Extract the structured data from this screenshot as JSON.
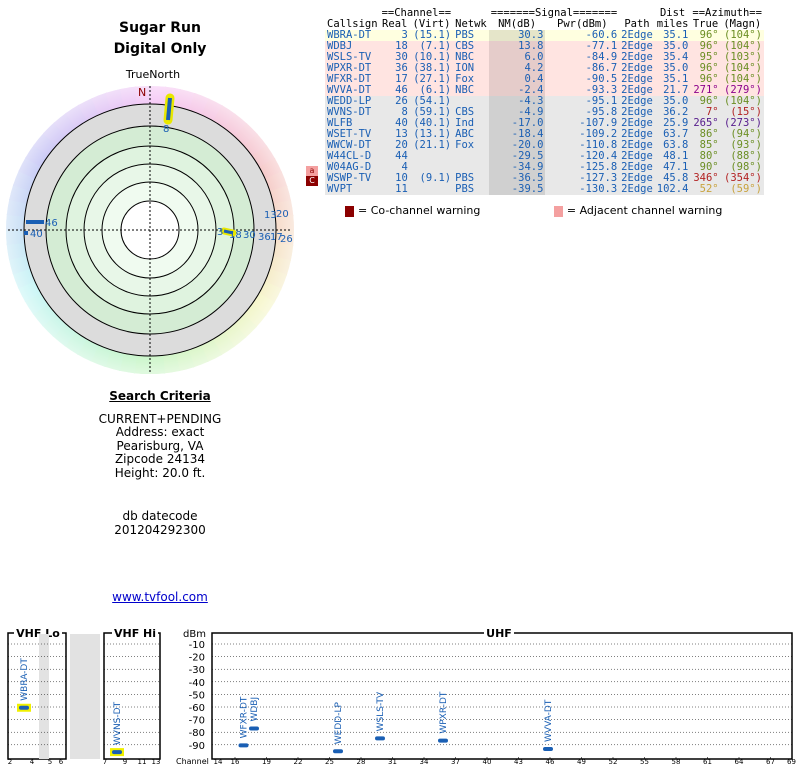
{
  "header": {
    "title_line1": "Sugar Run",
    "title_line2": "Digital Only",
    "true_north": "TrueNorth"
  },
  "table": {
    "group_headers": {
      "channel": "==Channel==",
      "signal": "=======Signal=======",
      "dist": "Dist",
      "azimuth": "==Azimuth=="
    },
    "columns": {
      "callsign": "Callsign",
      "real": "Real",
      "virt": "(Virt)",
      "netwk": "Netwk",
      "nm": "NM(dB)",
      "pwr": "Pwr(dBm)",
      "path": "Path",
      "dist": "miles",
      "true": "True",
      "magn": "(Magn)"
    },
    "rows": [
      {
        "callsign": "WBRA-DT",
        "real": "3",
        "virt": "(15.1)",
        "netwk": "PBS",
        "nm": "30.3",
        "pwr": "-60.6",
        "path": "2Edge",
        "dist": "35.1",
        "true": "96°",
        "magn": "(104°)",
        "bg": "#ffffe0",
        "az_color": "#6b8e23"
      },
      {
        "callsign": "WDBJ",
        "real": "18",
        "virt": "(7.1)",
        "netwk": "CBS",
        "nm": "13.8",
        "pwr": "-77.1",
        "path": "2Edge",
        "dist": "35.0",
        "true": "96°",
        "magn": "(104°)",
        "bg": "#ffe4e1",
        "az_color": "#6b8e23"
      },
      {
        "callsign": "WSLS-TV",
        "real": "30",
        "virt": "(10.1)",
        "netwk": "NBC",
        "nm": "6.0",
        "pwr": "-84.9",
        "path": "2Edge",
        "dist": "35.4",
        "true": "95°",
        "magn": "(103°)",
        "bg": "#ffe4e1",
        "az_color": "#6b8e23"
      },
      {
        "callsign": "WPXR-DT",
        "real": "36",
        "virt": "(38.1)",
        "netwk": "ION",
        "nm": "4.2",
        "pwr": "-86.7",
        "path": "2Edge",
        "dist": "35.0",
        "true": "96°",
        "magn": "(104°)",
        "bg": "#ffe4e1",
        "az_color": "#6b8e23"
      },
      {
        "callsign": "WFXR-DT",
        "real": "17",
        "virt": "(27.1)",
        "netwk": "Fox",
        "nm": "0.4",
        "pwr": "-90.5",
        "path": "2Edge",
        "dist": "35.1",
        "true": "96°",
        "magn": "(104°)",
        "bg": "#ffe4e1",
        "az_color": "#6b8e23"
      },
      {
        "callsign": "WVVA-DT",
        "real": "46",
        "virt": "(6.1)",
        "netwk": "NBC",
        "nm": "-2.4",
        "pwr": "-93.3",
        "path": "2Edge",
        "dist": "21.7",
        "true": "271°",
        "magn": "(279°)",
        "bg": "#ffe4e1",
        "az_color": "#8b008b"
      },
      {
        "callsign": "WEDD-LP",
        "real": "26",
        "virt": "(54.1)",
        "netwk": "",
        "nm": "-4.3",
        "pwr": "-95.1",
        "path": "2Edge",
        "dist": "35.0",
        "true": "96°",
        "magn": "(104°)",
        "bg": "#e8e8e8",
        "az_color": "#6b8e23"
      },
      {
        "callsign": "WVNS-DT",
        "real": "8",
        "virt": "(59.1)",
        "netwk": "CBS",
        "nm": "-4.9",
        "pwr": "-95.8",
        "path": "2Edge",
        "dist": "36.2",
        "true": "7°",
        "magn": "(15°)",
        "bg": "#e8e8e8",
        "az_color": "#b22222"
      },
      {
        "callsign": "WLFB",
        "real": "40",
        "virt": "(40.1)",
        "netwk": "Ind",
        "nm": "-17.0",
        "pwr": "-107.9",
        "path": "2Edge",
        "dist": "25.9",
        "true": "265°",
        "magn": "(273°)",
        "bg": "#e8e8e8",
        "az_color": "#551a8b"
      },
      {
        "callsign": "WSET-TV",
        "real": "13",
        "virt": "(13.1)",
        "netwk": "ABC",
        "nm": "-18.4",
        "pwr": "-109.2",
        "path": "2Edge",
        "dist": "63.7",
        "true": "86°",
        "magn": "(94°)",
        "bg": "#e8e8e8",
        "az_color": "#6b8e23"
      },
      {
        "callsign": "WWCW-DT",
        "real": "20",
        "virt": "(21.1)",
        "netwk": "Fox",
        "nm": "-20.0",
        "pwr": "-110.8",
        "path": "2Edge",
        "dist": "63.8",
        "true": "85°",
        "magn": "(93°)",
        "bg": "#e8e8e8",
        "az_color": "#6b8e23"
      },
      {
        "callsign": "W44CL-D",
        "real": "44",
        "virt": "",
        "netwk": "",
        "nm": "-29.5",
        "pwr": "-120.4",
        "path": "2Edge",
        "dist": "48.1",
        "true": "80°",
        "magn": "(88°)",
        "bg": "#e8e8e8",
        "az_color": "#6b8e23"
      },
      {
        "callsign": "W04AG-D",
        "real": "4",
        "virt": "",
        "netwk": "",
        "nm": "-34.9",
        "pwr": "-125.8",
        "path": "2Edge",
        "dist": "47.1",
        "true": "90°",
        "magn": "(98°)",
        "bg": "#e8e8e8",
        "az_color": "#6b8e23"
      },
      {
        "callsign": "WSWP-TV",
        "real": "10",
        "virt": "(9.1)",
        "netwk": "PBS",
        "nm": "-36.5",
        "pwr": "-127.3",
        "path": "2Edge",
        "dist": "45.8",
        "true": "346°",
        "magn": "(354°)",
        "bg": "#e8e8e8",
        "az_color": "#b22222"
      },
      {
        "callsign": "WVPT",
        "real": "11",
        "virt": "",
        "netwk": "PBS",
        "nm": "-39.5",
        "pwr": "-130.3",
        "path": "2Edge",
        "dist": "102.4",
        "true": "52°",
        "magn": "(59°)",
        "bg": "#e8e8e8",
        "az_color": "#c8a23c"
      }
    ]
  },
  "warnings": {
    "cochannel_label": "= Co-channel warning",
    "adjacent_label": "= Adjacent channel warning",
    "cochannel_glyph": "C",
    "adjacent_glyph": "a",
    "cochannel_color": "#8b0000",
    "adjacent_color": "#f4a0a0",
    "side_badges": [
      {
        "glyph": "a",
        "type": "adjacent"
      },
      {
        "glyph": "C",
        "type": "cochannel"
      }
    ]
  },
  "polar": {
    "north_label": "N",
    "markers": [
      {
        "label": "8",
        "true_deg": 7,
        "color": "#1a5fb4",
        "highlight": true
      },
      {
        "label": "46",
        "true_deg": 271,
        "color": "#1a5fb4",
        "highlight": false
      },
      {
        "label": "40",
        "true_deg": 265,
        "color": "#1a5fb4",
        "highlight": false
      },
      {
        "label": "3",
        "true_deg": 96,
        "color": "#1a5fb4",
        "highlight": true
      },
      {
        "label": "18",
        "true_deg": 96,
        "color": "#1a5fb4",
        "highlight": false
      },
      {
        "label": "30",
        "true_deg": 95,
        "color": "#1a5fb4",
        "highlight": false
      },
      {
        "label": "36",
        "true_deg": 96,
        "color": "#1a5fb4",
        "highlight": false
      },
      {
        "label": "17",
        "true_deg": 96,
        "color": "#1a5fb4",
        "highlight": false
      },
      {
        "label": "26",
        "true_deg": 96,
        "color": "#1a5fb4",
        "highlight": false
      },
      {
        "label": "13",
        "true_deg": 86,
        "color": "#1a5fb4",
        "highlight": false
      },
      {
        "label": "20",
        "true_deg": 85,
        "color": "#1a5fb4",
        "highlight": false
      }
    ]
  },
  "criteria": {
    "heading": "Search Criteria",
    "mode": "CURRENT+PENDING",
    "address": "Address: exact",
    "city": "Pearisburg, VA",
    "zip": "Zipcode 24134",
    "height": "Height: 20.0 ft.",
    "db_label": "db datecode",
    "db_value": "201204292300"
  },
  "site_link": "www.tvfool.com",
  "spectrum": {
    "vhf_lo": "VHF Lo",
    "vhf_hi": "VHF Hi",
    "uhf": "UHF",
    "dbm_label": "dBm",
    "channel_label": "Channel",
    "dbm_ticks": [
      "-10",
      "-20",
      "-30",
      "-40",
      "-50",
      "-60",
      "-70",
      "-80",
      "-90"
    ],
    "vhf_lo_ch": [
      "2",
      "4",
      "5",
      "6"
    ],
    "vhf_hi_ch": [
      "7",
      "9",
      "11",
      "13"
    ],
    "uhf_ch": [
      "14",
      "16",
      "19",
      "22",
      "25",
      "28",
      "31",
      "34",
      "37",
      "40",
      "43",
      "46",
      "49",
      "52",
      "55",
      "58",
      "61",
      "64",
      "67",
      "69"
    ],
    "stations": [
      {
        "callsign": "WBRA-DT",
        "ch": 3,
        "dbm": -60.6,
        "band": "lo",
        "highlight": true
      },
      {
        "callsign": "WVNS-DT",
        "ch": 8,
        "dbm": -95.8,
        "band": "hi",
        "highlight": true
      },
      {
        "callsign": "WFXR-DT",
        "ch": 17,
        "dbm": -90.5,
        "band": "uhf",
        "highlight": false
      },
      {
        "callsign": "WDBJ",
        "ch": 18,
        "dbm": -77.1,
        "band": "uhf",
        "highlight": false
      },
      {
        "callsign": "WEDD-LP",
        "ch": 26,
        "dbm": -95.1,
        "band": "uhf",
        "highlight": false
      },
      {
        "callsign": "WSLS-TV",
        "ch": 30,
        "dbm": -84.9,
        "band": "uhf",
        "highlight": false
      },
      {
        "callsign": "WPXR-DT",
        "ch": 36,
        "dbm": -86.7,
        "band": "uhf",
        "highlight": false
      },
      {
        "callsign": "WVVA-DT",
        "ch": 46,
        "dbm": -93.3,
        "band": "uhf",
        "highlight": false
      }
    ]
  }
}
